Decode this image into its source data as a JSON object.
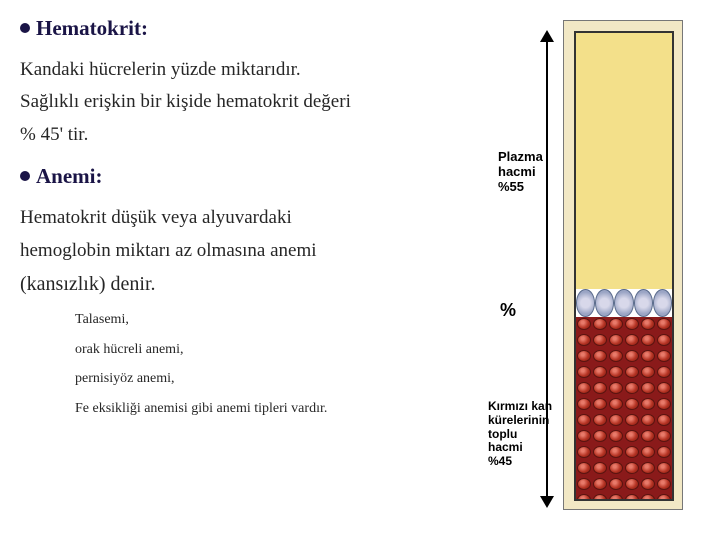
{
  "headings": {
    "hematokrit": "Hematokrit:",
    "anemi": "Anemi:"
  },
  "paragraphs": {
    "p1": "Kandaki hücrelerin yüzde miktarıdır.",
    "p2": "Sağlıklı erişkin bir kişide hematokrit değeri",
    "p3": "% 45' tir.",
    "p4": "Hematokrit düşük veya alyuvardaki",
    "p5": "hemoglobin miktarı az olmasına anemi",
    "p6": "(kansızlık) denir."
  },
  "sublist": {
    "s1": "Talasemi,",
    "s2": "orak hücreli anemi,",
    "s3": "pernisiyöz anemi,",
    "s4": "Fe eksikliği anemisi gibi anemi tipleri vardır."
  },
  "diagram": {
    "plasma_label_line1": "Plazma",
    "plasma_label_line2": "hacmi",
    "plasma_label_line3": "%55",
    "percent_symbol": "%",
    "rbc_label_line1": "Kırmızı kan",
    "rbc_label_line2": "kürelerinin",
    "rbc_label_line3": "toplu",
    "rbc_label_line4": "hacmi",
    "rbc_label_line5": "%45",
    "plasma_color": "#f3e08a",
    "plasma_pct": 55,
    "rbc_pct": 45
  },
  "colors": {
    "heading": "#1a1446",
    "text": "#262626",
    "background": "#ffffff"
  }
}
